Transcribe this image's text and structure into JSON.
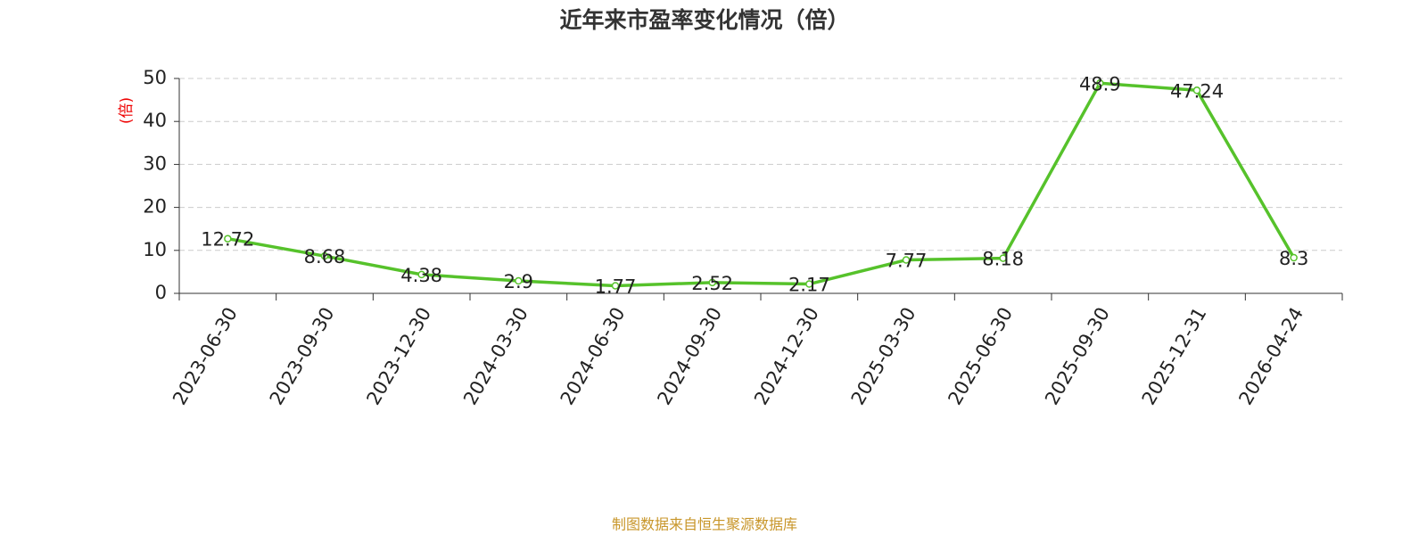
{
  "chart_data": {
    "type": "line",
    "title": "近年来市盈率变化情况（倍）",
    "y_label": "(倍)",
    "categories": [
      "2023-06-30",
      "2023-09-30",
      "2023-12-30",
      "2024-03-30",
      "2024-06-30",
      "2024-09-30",
      "2024-12-30",
      "2025-03-30",
      "2025-06-30",
      "2025-09-30",
      "2025-12-31",
      "2026-04-24"
    ],
    "values": [
      12.72,
      8.68,
      4.38,
      2.9,
      1.77,
      2.52,
      2.17,
      7.77,
      8.18,
      48.9,
      47.24,
      8.3
    ],
    "color": "#56c22b",
    "ylim": [
      0,
      50
    ],
    "yticks": [
      0,
      10,
      20,
      30,
      40,
      50
    ],
    "grid": true,
    "source": "制图数据来自恒生聚源数据库"
  }
}
